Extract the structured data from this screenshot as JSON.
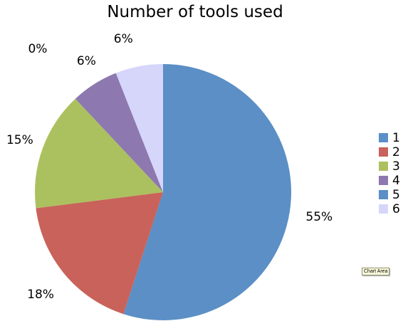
{
  "chart_data": {
    "type": "pie",
    "title": "Number of tools used",
    "categories": [
      "1",
      "2",
      "3",
      "4",
      "5",
      "6"
    ],
    "values": [
      55,
      18,
      15,
      6,
      0,
      6
    ],
    "value_labels": [
      "55%",
      "18%",
      "15%",
      "6%",
      "0%",
      "6%"
    ],
    "colors": [
      "#5b8fc6",
      "#c9625a",
      "#abc15f",
      "#8d78b0",
      "#5b8fc6",
      "#d6d6fb"
    ],
    "legend_position": "right",
    "start_angle": "12 o'clock",
    "direction": "clockwise"
  },
  "tooltip": {
    "text": "Chart Area"
  }
}
